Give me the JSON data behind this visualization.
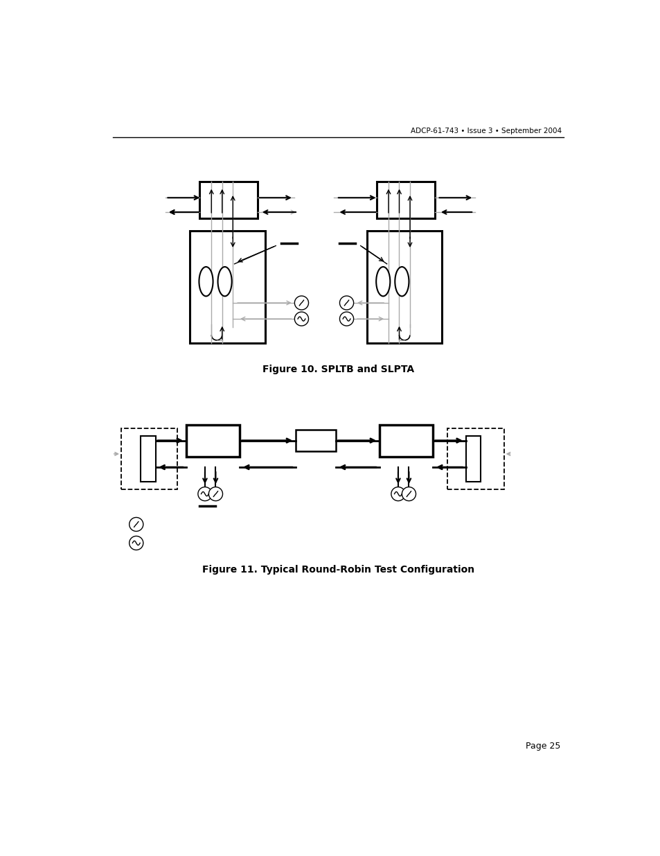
{
  "header_text": "ADCP-61-743 • Issue 3 • September 2004",
  "fig10_title": "Figure 10. SPLTB and SLPTA",
  "fig11_title": "Figure 11. Typical Round-Robin Test Configuration",
  "page_text": "Page 25",
  "bg_color": "#ffffff",
  "line_color": "#000000",
  "gray_color": "#aaaaaa"
}
